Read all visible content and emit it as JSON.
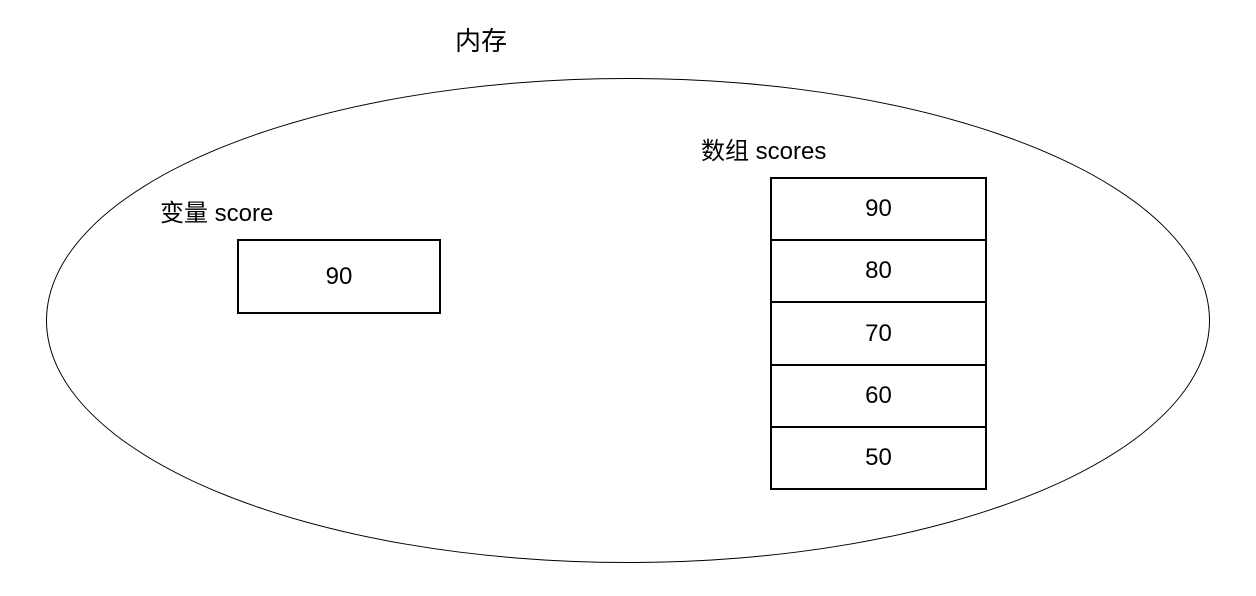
{
  "diagram": {
    "title": "内存",
    "variable": {
      "label": "变量 score",
      "value": "90"
    },
    "array": {
      "label": "数组 scores",
      "cells": [
        "90",
        "80",
        "70",
        "60",
        "50"
      ]
    },
    "colors": {
      "line": "#000000",
      "background": "#ffffff"
    }
  }
}
